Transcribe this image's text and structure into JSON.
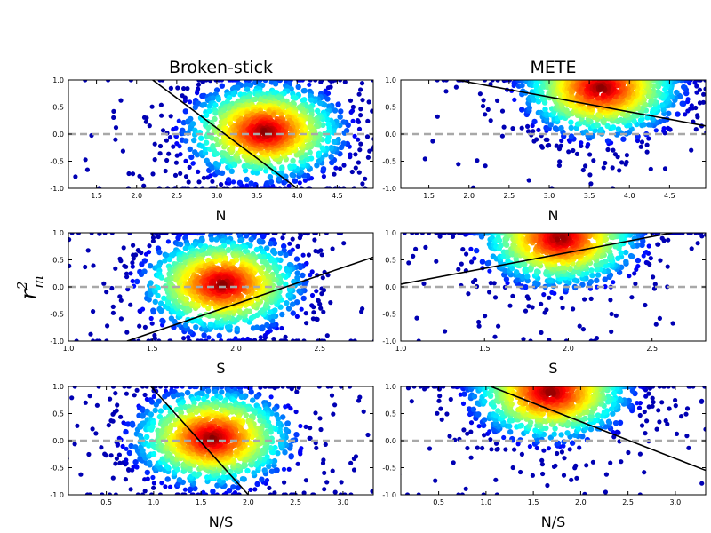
{
  "figure": {
    "ylabel": "r",
    "ylabel_sup": "2",
    "ylabel_sub": "m"
  },
  "chart_data": [
    {
      "type": "scatter",
      "title": "Broken-stick",
      "xlabel": "N",
      "xlim": [
        1.15,
        4.95
      ],
      "ylim": [
        -1.0,
        1.0
      ],
      "xticks": [
        "1.5",
        "2.0",
        "2.5",
        "3.0",
        "3.5",
        "4.0",
        "4.5"
      ],
      "yticks": [
        "-1.0",
        "-0.5",
        "0.0",
        "0.5",
        "1.0"
      ],
      "reference_line_y": 0.0,
      "fit_line": {
        "x": [
          2.2,
          4.0
        ],
        "y": [
          1.0,
          -1.0
        ]
      },
      "density_core": {
        "x": 3.6,
        "y": 0.05
      }
    },
    {
      "type": "scatter",
      "title": "METE",
      "xlabel": "N",
      "xlim": [
        1.15,
        4.95
      ],
      "ylim": [
        -1.0,
        1.0
      ],
      "xticks": [
        "1.5",
        "2.0",
        "2.5",
        "3.0",
        "3.5",
        "4.0",
        "4.5"
      ],
      "yticks": [
        "-1.0",
        "-0.5",
        "0.0",
        "0.5",
        "1.0"
      ],
      "reference_line_y": 0.0,
      "fit_line": {
        "x": [
          1.85,
          4.95
        ],
        "y": [
          1.0,
          0.15
        ]
      },
      "density_core": {
        "x": 3.65,
        "y": 0.85
      }
    },
    {
      "type": "scatter",
      "title": "",
      "xlabel": "S",
      "xlim": [
        1.0,
        2.82
      ],
      "ylim": [
        -1.0,
        1.0
      ],
      "xticks": [
        "1.0",
        "1.5",
        "2.0",
        "2.5"
      ],
      "yticks": [
        "-1.0",
        "-0.5",
        "0.0",
        "0.5",
        "1.0"
      ],
      "reference_line_y": 0.0,
      "fit_line": {
        "x": [
          1.35,
          2.82
        ],
        "y": [
          -1.0,
          0.55
        ]
      },
      "density_core": {
        "x": 1.92,
        "y": 0.05
      }
    },
    {
      "type": "scatter",
      "title": "",
      "xlabel": "S",
      "xlim": [
        1.0,
        2.82
      ],
      "ylim": [
        -1.0,
        1.0
      ],
      "xticks": [
        "1.0",
        "1.5",
        "2.0",
        "2.5"
      ],
      "yticks": [
        "-1.0",
        "-0.5",
        "0.0",
        "0.5",
        "1.0"
      ],
      "reference_line_y": 0.0,
      "fit_line": {
        "x": [
          1.0,
          2.62
        ],
        "y": [
          0.05,
          1.0
        ]
      },
      "density_core": {
        "x": 1.95,
        "y": 0.9
      }
    },
    {
      "type": "scatter",
      "title": "",
      "xlabel": "N/S",
      "xlim": [
        0.1,
        3.32
      ],
      "ylim": [
        -1.0,
        1.0
      ],
      "xticks": [
        "0.5",
        "1.0",
        "1.5",
        "2.0",
        "2.5",
        "3.0"
      ],
      "yticks": [
        "-1.0",
        "-0.5",
        "0.0",
        "0.5",
        "1.0"
      ],
      "reference_line_y": 0.0,
      "fit_line": {
        "x": [
          0.97,
          2.0
        ],
        "y": [
          1.0,
          -1.0
        ]
      },
      "density_core": {
        "x": 1.62,
        "y": 0.05
      }
    },
    {
      "type": "scatter",
      "title": "",
      "xlabel": "N/S",
      "xlim": [
        0.1,
        3.32
      ],
      "ylim": [
        -1.0,
        1.0
      ],
      "xticks": [
        "0.5",
        "1.0",
        "1.5",
        "2.0",
        "2.5",
        "3.0"
      ],
      "yticks": [
        "-1.0",
        "-0.5",
        "0.0",
        "0.5",
        "1.0"
      ],
      "reference_line_y": 0.0,
      "fit_line": {
        "x": [
          1.05,
          3.32
        ],
        "y": [
          1.0,
          -0.55
        ]
      },
      "density_core": {
        "x": 1.68,
        "y": 0.9
      }
    }
  ]
}
